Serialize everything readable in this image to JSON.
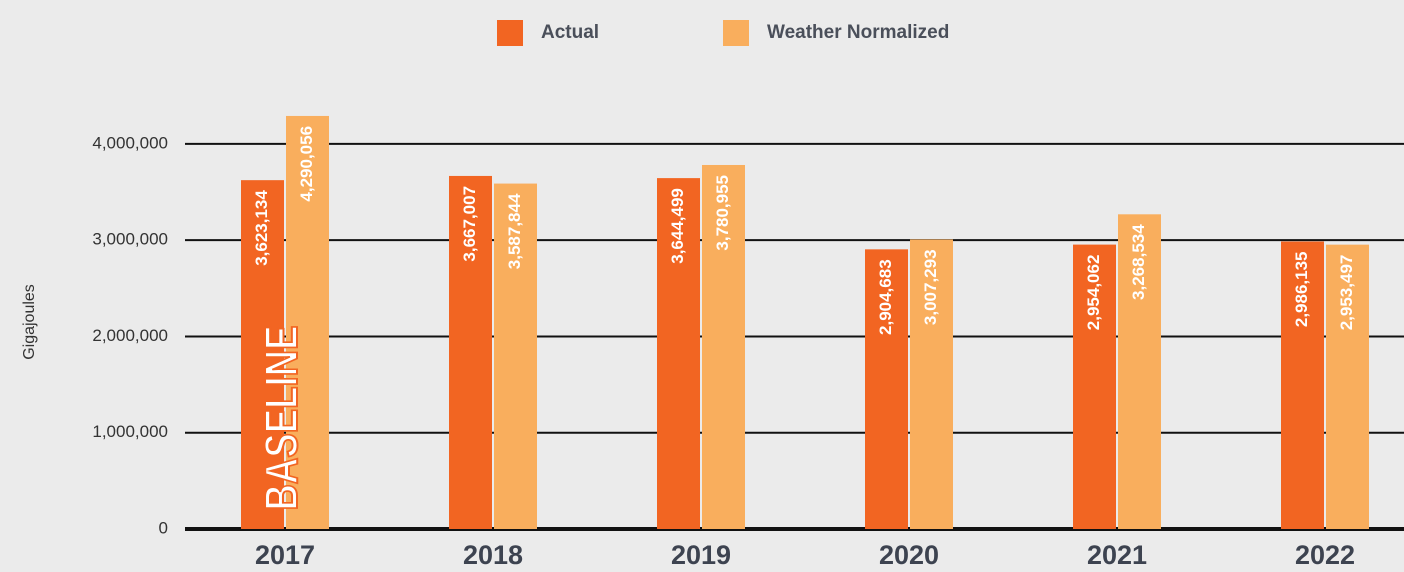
{
  "chart_data": {
    "type": "bar",
    "y_label": "Gigajoules",
    "annotation": "BASELINE",
    "categories": [
      "2017",
      "2018",
      "2019",
      "2020",
      "2021",
      "2022"
    ],
    "series": [
      {
        "name": "Actual",
        "color": "#f26522",
        "values": [
          3623134,
          3667007,
          3644499,
          2904683,
          2954062,
          2986135
        ],
        "value_labels": [
          "3,623,134",
          "3,667,007",
          "3,644,499",
          "2,904,683",
          "2,954,062",
          "2,986,135"
        ]
      },
      {
        "name": "Weather Normalized",
        "color": "#f9ae5d",
        "values": [
          4290056,
          3587844,
          3780955,
          3007293,
          3268534,
          2953497
        ],
        "value_labels": [
          "4,290,056",
          "3,587,844",
          "3,780,955",
          "3,007,293",
          "3,268,534",
          "2,953,497"
        ]
      }
    ],
    "ylim": [
      0,
      4300000
    ],
    "yticks": [
      0,
      {
        "value": 1000000,
        "label": "1,000,000"
      },
      {
        "value": 2000000,
        "label": "2,000,000"
      },
      {
        "value": 3000000,
        "label": "3,000,000"
      },
      {
        "value": 4000000,
        "label": "4,000,000"
      }
    ],
    "grid": true
  }
}
